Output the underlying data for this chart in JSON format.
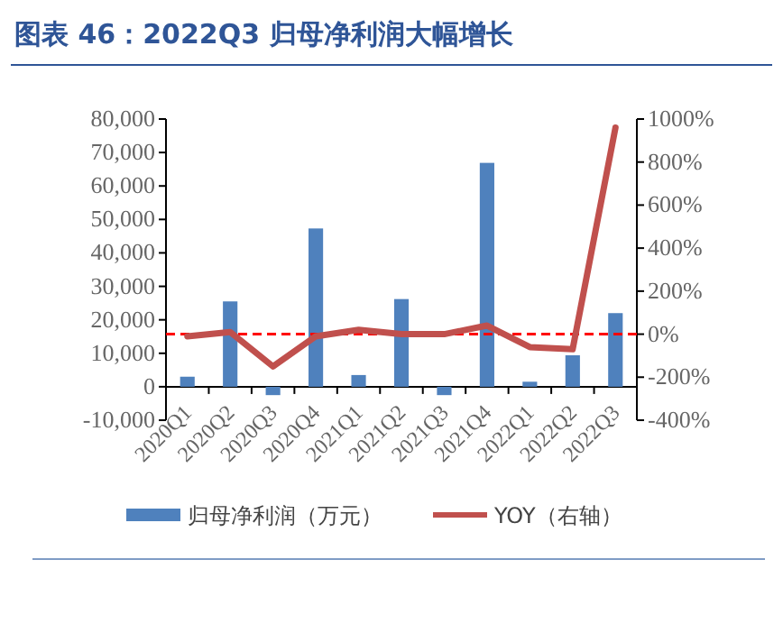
{
  "chart_data": {
    "type": "bar",
    "title": "图表 46：2022Q3 归母净利润大幅增长",
    "categories": [
      "2020Q1",
      "2020Q2",
      "2020Q3",
      "2020Q4",
      "2021Q1",
      "2021Q2",
      "2021Q3",
      "2021Q4",
      "2022Q1",
      "2022Q2",
      "2022Q3"
    ],
    "series": [
      {
        "name": "归母净利润（万元）",
        "color": "#4f81bd",
        "values": [
          3000,
          25500,
          -2500,
          47300,
          3500,
          26200,
          -2500,
          66900,
          1500,
          9400,
          22000
        ]
      },
      {
        "name": "YOY（右轴）",
        "type": "line",
        "axis": "y2",
        "color": "#c0504d",
        "values": [
          -10,
          10,
          -150,
          -10,
          20,
          0,
          0,
          40,
          -60,
          -70,
          960
        ]
      }
    ],
    "ylim": [
      -10000,
      80000
    ],
    "yticks": [
      {
        "value": -10000,
        "label": "-10,000"
      },
      {
        "value": 0,
        "label": "0"
      },
      {
        "value": 10000,
        "label": "10,000"
      },
      {
        "value": 20000,
        "label": "20,000"
      },
      {
        "value": 30000,
        "label": "30,000"
      },
      {
        "value": 40000,
        "label": "40,000"
      },
      {
        "value": 50000,
        "label": "50,000"
      },
      {
        "value": 60000,
        "label": "60,000"
      },
      {
        "value": 70000,
        "label": "70,000"
      },
      {
        "value": 80000,
        "label": "80,000"
      }
    ],
    "y2lim": [
      -400,
      1000
    ],
    "y2ticks": [
      {
        "value": -400,
        "label": "-400%"
      },
      {
        "value": -200,
        "label": "-200%"
      },
      {
        "value": 0,
        "label": "0%"
      },
      {
        "value": 200,
        "label": "200%"
      },
      {
        "value": 400,
        "label": "400%"
      },
      {
        "value": 600,
        "label": "600%"
      },
      {
        "value": 800,
        "label": "800%"
      },
      {
        "value": 1000,
        "label": "1000%"
      }
    ],
    "ref_lines": [
      {
        "axis": "y2",
        "value": 0,
        "color": "#ff0000",
        "line_style": "dashed"
      }
    ],
    "legend": "bottom",
    "grid": false
  }
}
